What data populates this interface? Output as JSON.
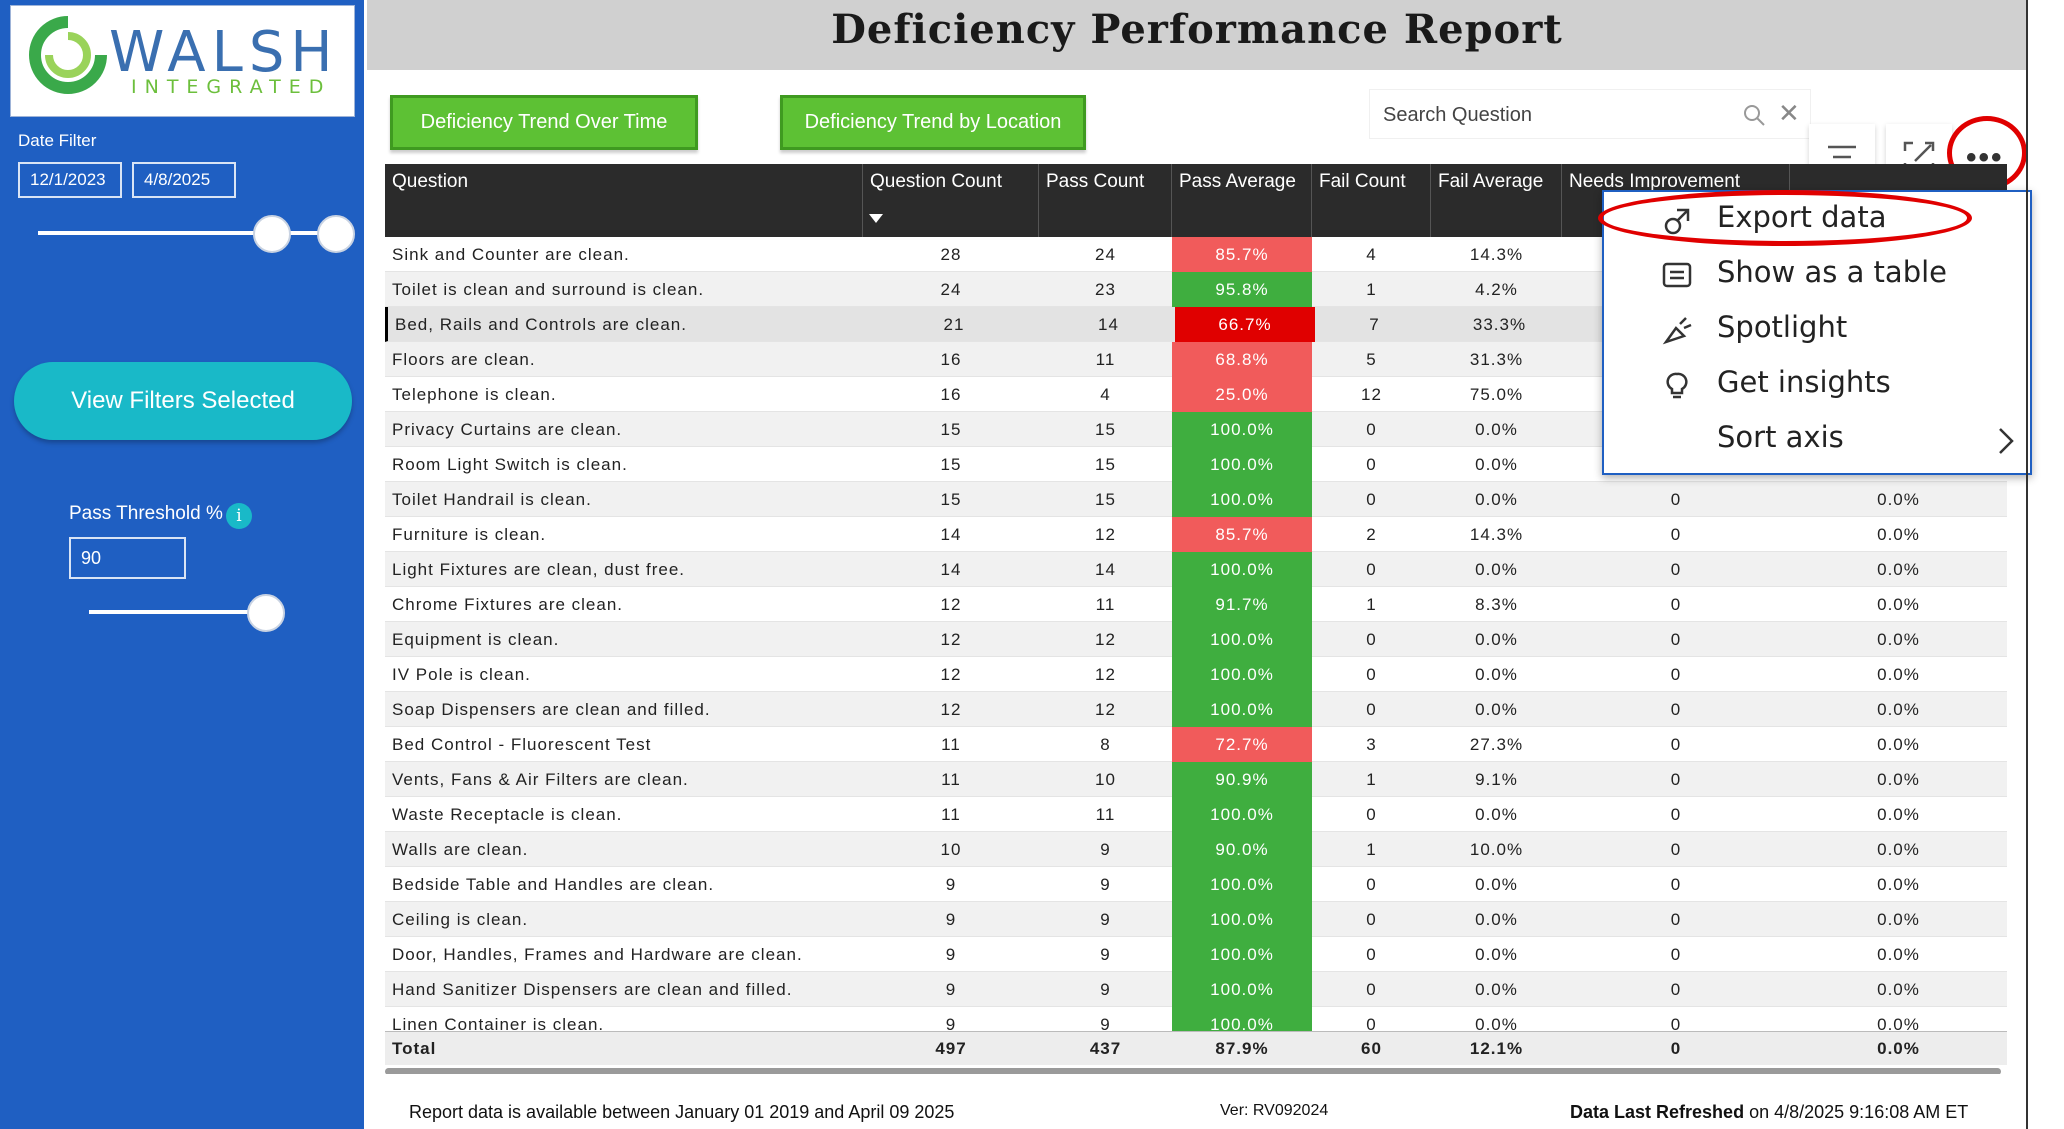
{
  "sidebar": {
    "logo_name": "WALSH",
    "logo_sub": "INTEGRATED",
    "date_filter_label": "Date Filter",
    "date_start": "12/1/2023",
    "date_end": "4/8/2025",
    "view_filters_label": "View Filters Selected",
    "threshold_label": "Pass Threshold %",
    "threshold_value": "90",
    "info_icon": "info-icon"
  },
  "header": {
    "title": "Deficiency Performance Report"
  },
  "buttons": {
    "trend_time": "Deficiency Trend Over Time",
    "trend_location": "Deficiency Trend by Location"
  },
  "search": {
    "placeholder": "Search Question"
  },
  "table": {
    "columns": [
      "Question",
      "Question Count",
      "Pass Count",
      "Pass Average",
      "Fail Count",
      "Fail Average",
      "Needs Improvement",
      ""
    ],
    "rows": [
      {
        "q": "Sink and Counter are clean.",
        "qc": "28",
        "pc": "24",
        "pa": "85.7%",
        "fc": "4",
        "fa": "14.3%",
        "ni": "",
        "na": "",
        "color": "#f15b5b"
      },
      {
        "q": "Toilet is clean and surround is clean.",
        "qc": "24",
        "pc": "23",
        "pa": "95.8%",
        "fc": "1",
        "fa": "4.2%",
        "ni": "",
        "na": "",
        "color": "#3fae3f"
      },
      {
        "q": "Bed, Rails and Controls are clean.",
        "qc": "21",
        "pc": "14",
        "pa": "66.7%",
        "fc": "7",
        "fa": "33.3%",
        "ni": "",
        "na": "",
        "color": "#e00000"
      },
      {
        "q": "Floors are clean.",
        "qc": "16",
        "pc": "11",
        "pa": "68.8%",
        "fc": "5",
        "fa": "31.3%",
        "ni": "",
        "na": "",
        "color": "#f15b5b"
      },
      {
        "q": "Telephone is clean.",
        "qc": "16",
        "pc": "4",
        "pa": "25.0%",
        "fc": "12",
        "fa": "75.0%",
        "ni": "",
        "na": "",
        "color": "#f15b5b"
      },
      {
        "q": "Privacy Curtains are clean.",
        "qc": "15",
        "pc": "15",
        "pa": "100.0%",
        "fc": "0",
        "fa": "0.0%",
        "ni": "",
        "na": "",
        "color": "#3fae3f"
      },
      {
        "q": "Room Light Switch is clean.",
        "qc": "15",
        "pc": "15",
        "pa": "100.0%",
        "fc": "0",
        "fa": "0.0%",
        "ni": "",
        "na": "",
        "color": "#3fae3f"
      },
      {
        "q": "Toilet Handrail is clean.",
        "qc": "15",
        "pc": "15",
        "pa": "100.0%",
        "fc": "0",
        "fa": "0.0%",
        "ni": "0",
        "na": "0.0%",
        "color": "#3fae3f"
      },
      {
        "q": "Furniture is clean.",
        "qc": "14",
        "pc": "12",
        "pa": "85.7%",
        "fc": "2",
        "fa": "14.3%",
        "ni": "0",
        "na": "0.0%",
        "color": "#f15b5b"
      },
      {
        "q": "Light Fixtures are clean, dust free.",
        "qc": "14",
        "pc": "14",
        "pa": "100.0%",
        "fc": "0",
        "fa": "0.0%",
        "ni": "0",
        "na": "0.0%",
        "color": "#3fae3f"
      },
      {
        "q": "Chrome Fixtures are clean.",
        "qc": "12",
        "pc": "11",
        "pa": "91.7%",
        "fc": "1",
        "fa": "8.3%",
        "ni": "0",
        "na": "0.0%",
        "color": "#3fae3f"
      },
      {
        "q": "Equipment is clean.",
        "qc": "12",
        "pc": "12",
        "pa": "100.0%",
        "fc": "0",
        "fa": "0.0%",
        "ni": "0",
        "na": "0.0%",
        "color": "#3fae3f"
      },
      {
        "q": "IV Pole is clean.",
        "qc": "12",
        "pc": "12",
        "pa": "100.0%",
        "fc": "0",
        "fa": "0.0%",
        "ni": "0",
        "na": "0.0%",
        "color": "#3fae3f"
      },
      {
        "q": "Soap Dispensers are clean and filled.",
        "qc": "12",
        "pc": "12",
        "pa": "100.0%",
        "fc": "0",
        "fa": "0.0%",
        "ni": "0",
        "na": "0.0%",
        "color": "#3fae3f"
      },
      {
        "q": "Bed Control - Fluorescent Test",
        "qc": "11",
        "pc": "8",
        "pa": "72.7%",
        "fc": "3",
        "fa": "27.3%",
        "ni": "0",
        "na": "0.0%",
        "color": "#f15b5b"
      },
      {
        "q": "Vents, Fans & Air Filters are clean.",
        "qc": "11",
        "pc": "10",
        "pa": "90.9%",
        "fc": "1",
        "fa": "9.1%",
        "ni": "0",
        "na": "0.0%",
        "color": "#3fae3f"
      },
      {
        "q": "Waste Receptacle is clean.",
        "qc": "11",
        "pc": "11",
        "pa": "100.0%",
        "fc": "0",
        "fa": "0.0%",
        "ni": "0",
        "na": "0.0%",
        "color": "#3fae3f"
      },
      {
        "q": "Walls are clean.",
        "qc": "10",
        "pc": "9",
        "pa": "90.0%",
        "fc": "1",
        "fa": "10.0%",
        "ni": "0",
        "na": "0.0%",
        "color": "#3fae3f"
      },
      {
        "q": "Bedside Table and Handles are clean.",
        "qc": "9",
        "pc": "9",
        "pa": "100.0%",
        "fc": "0",
        "fa": "0.0%",
        "ni": "0",
        "na": "0.0%",
        "color": "#3fae3f"
      },
      {
        "q": "Ceiling is clean.",
        "qc": "9",
        "pc": "9",
        "pa": "100.0%",
        "fc": "0",
        "fa": "0.0%",
        "ni": "0",
        "na": "0.0%",
        "color": "#3fae3f"
      },
      {
        "q": "Door, Handles, Frames and Hardware are clean.",
        "qc": "9",
        "pc": "9",
        "pa": "100.0%",
        "fc": "0",
        "fa": "0.0%",
        "ni": "0",
        "na": "0.0%",
        "color": "#3fae3f"
      },
      {
        "q": "Hand Sanitizer Dispensers are clean and filled.",
        "qc": "9",
        "pc": "9",
        "pa": "100.0%",
        "fc": "0",
        "fa": "0.0%",
        "ni": "0",
        "na": "0.0%",
        "color": "#3fae3f"
      },
      {
        "q": "Linen Container is clean.",
        "qc": "9",
        "pc": "9",
        "pa": "100.0%",
        "fc": "0",
        "fa": "0.0%",
        "ni": "0",
        "na": "0.0%",
        "color": "#3fae3f"
      }
    ],
    "total": {
      "label": "Total",
      "qc": "497",
      "pc": "437",
      "pa": "87.9%",
      "fc": "60",
      "fa": "12.1%",
      "ni": "0",
      "na": "0.0%"
    }
  },
  "context_menu": {
    "items": [
      {
        "label": "Export data",
        "icon": "export-icon"
      },
      {
        "label": "Show as a table",
        "icon": "table-icon"
      },
      {
        "label": "Spotlight",
        "icon": "spotlight-icon"
      },
      {
        "label": "Get insights",
        "icon": "lightbulb-icon"
      },
      {
        "label": "Sort axis",
        "icon": "chevron-right-icon"
      }
    ]
  },
  "footer": {
    "availability": "Report data is available between January 01 2019 and April 09 2025",
    "version": "Ver: RV092024",
    "refreshed_label": "Data Last Refreshed",
    "refreshed_value": "on 4/8/2025 9:16:08 AM  ET"
  },
  "colors": {
    "sidebar_blue": "#1f5fc2",
    "button_green": "#5dc134",
    "teal": "#19b9c8",
    "fail_red": "#f15b5b",
    "pass_green": "#3fae3f",
    "highlight_red": "#e00000"
  }
}
